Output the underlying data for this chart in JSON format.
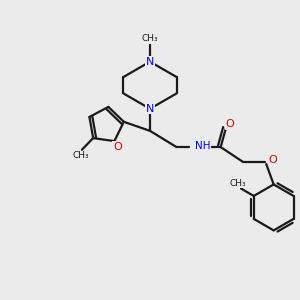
{
  "bg_color": "#ebebeb",
  "bond_color": "#1a1a1a",
  "N_color": "#0000ee",
  "O_color": "#dd0000",
  "lw": 1.6,
  "figsize": [
    3.0,
    3.0
  ],
  "dpi": 100,
  "xlim": [
    0,
    10
  ],
  "ylim": [
    0,
    10
  ]
}
